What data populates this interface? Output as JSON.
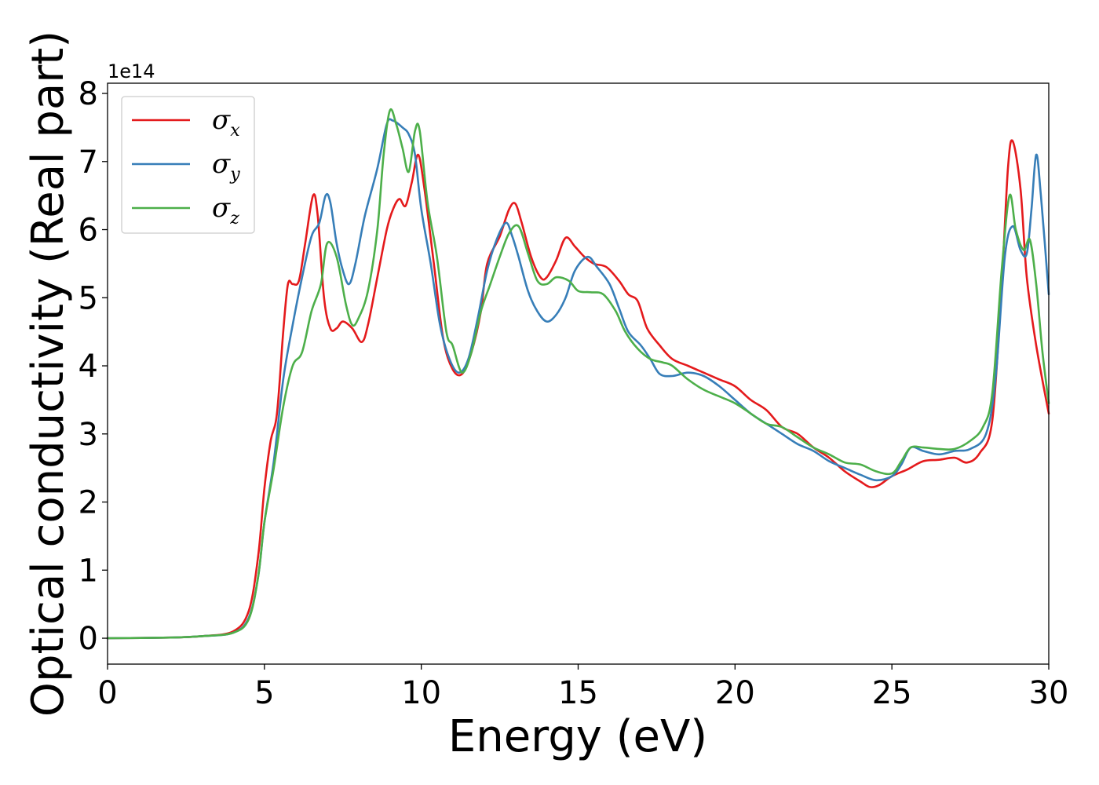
{
  "chart_data": {
    "type": "line",
    "xlabel": "Energy (eV)",
    "ylabel": "Optical conductivity (Real part)",
    "y_offset_label": "1e14",
    "xlim": [
      0,
      30
    ],
    "ylim": [
      -0.38,
      8.15
    ],
    "xticks": [
      0,
      5,
      10,
      15,
      20,
      25,
      30
    ],
    "yticks": [
      0,
      1,
      2,
      3,
      4,
      5,
      6,
      7,
      8
    ],
    "legend_position": "top-left",
    "grid": false,
    "series": [
      {
        "name": "σx",
        "base": "σ",
        "sub": "x",
        "color": "#e41a1c",
        "points": [
          [
            0,
            0
          ],
          [
            2,
            0.01
          ],
          [
            3,
            0.03
          ],
          [
            4,
            0.1
          ],
          [
            4.5,
            0.4
          ],
          [
            4.8,
            1.2
          ],
          [
            5,
            2.2
          ],
          [
            5.2,
            2.9
          ],
          [
            5.4,
            3.3
          ],
          [
            5.6,
            4.5
          ],
          [
            5.75,
            5.2
          ],
          [
            5.9,
            5.2
          ],
          [
            6.1,
            5.25
          ],
          [
            6.3,
            5.8
          ],
          [
            6.55,
            6.5
          ],
          [
            6.7,
            6.2
          ],
          [
            6.9,
            5.0
          ],
          [
            7.1,
            4.55
          ],
          [
            7.3,
            4.55
          ],
          [
            7.5,
            4.65
          ],
          [
            7.8,
            4.55
          ],
          [
            8.1,
            4.35
          ],
          [
            8.3,
            4.6
          ],
          [
            8.6,
            5.3
          ],
          [
            8.9,
            6.0
          ],
          [
            9.1,
            6.3
          ],
          [
            9.3,
            6.45
          ],
          [
            9.5,
            6.35
          ],
          [
            9.7,
            6.7
          ],
          [
            9.9,
            7.1
          ],
          [
            10.1,
            6.6
          ],
          [
            10.4,
            5.5
          ],
          [
            10.7,
            4.4
          ],
          [
            11.0,
            3.95
          ],
          [
            11.3,
            3.88
          ],
          [
            11.6,
            4.2
          ],
          [
            11.9,
            4.8
          ],
          [
            12.1,
            5.5
          ],
          [
            12.5,
            5.9
          ],
          [
            12.8,
            6.3
          ],
          [
            13.0,
            6.38
          ],
          [
            13.2,
            6.1
          ],
          [
            13.5,
            5.6
          ],
          [
            13.8,
            5.3
          ],
          [
            14.0,
            5.3
          ],
          [
            14.3,
            5.55
          ],
          [
            14.6,
            5.88
          ],
          [
            14.9,
            5.75
          ],
          [
            15.2,
            5.6
          ],
          [
            15.5,
            5.5
          ],
          [
            15.9,
            5.45
          ],
          [
            16.3,
            5.25
          ],
          [
            16.6,
            5.05
          ],
          [
            16.9,
            4.95
          ],
          [
            17.2,
            4.55
          ],
          [
            17.6,
            4.3
          ],
          [
            18.0,
            4.1
          ],
          [
            18.5,
            4.0
          ],
          [
            19.0,
            3.9
          ],
          [
            19.5,
            3.8
          ],
          [
            20.0,
            3.7
          ],
          [
            20.5,
            3.5
          ],
          [
            21.0,
            3.35
          ],
          [
            21.5,
            3.1
          ],
          [
            22.0,
            3.0
          ],
          [
            22.5,
            2.8
          ],
          [
            23.0,
            2.65
          ],
          [
            23.5,
            2.45
          ],
          [
            24.0,
            2.3
          ],
          [
            24.3,
            2.22
          ],
          [
            24.6,
            2.25
          ],
          [
            25.0,
            2.38
          ],
          [
            25.5,
            2.48
          ],
          [
            26.0,
            2.6
          ],
          [
            26.5,
            2.62
          ],
          [
            27.0,
            2.65
          ],
          [
            27.4,
            2.58
          ],
          [
            27.8,
            2.72
          ],
          [
            28.2,
            3.2
          ],
          [
            28.5,
            5.2
          ],
          [
            28.7,
            6.9
          ],
          [
            28.85,
            7.3
          ],
          [
            29.1,
            6.6
          ],
          [
            29.3,
            5.3
          ],
          [
            29.6,
            4.3
          ],
          [
            30,
            3.3
          ]
        ]
      },
      {
        "name": "σy",
        "base": "σ",
        "sub": "y",
        "color": "#377eb8",
        "points": [
          [
            0,
            0
          ],
          [
            2,
            0.01
          ],
          [
            3,
            0.03
          ],
          [
            4,
            0.08
          ],
          [
            4.5,
            0.3
          ],
          [
            4.8,
            0.9
          ],
          [
            5,
            1.7
          ],
          [
            5.3,
            2.6
          ],
          [
            5.6,
            3.8
          ],
          [
            5.9,
            4.6
          ],
          [
            6.2,
            5.3
          ],
          [
            6.5,
            5.9
          ],
          [
            6.75,
            6.1
          ],
          [
            6.95,
            6.5
          ],
          [
            7.1,
            6.4
          ],
          [
            7.3,
            5.8
          ],
          [
            7.5,
            5.4
          ],
          [
            7.7,
            5.2
          ],
          [
            7.9,
            5.5
          ],
          [
            8.2,
            6.2
          ],
          [
            8.6,
            6.9
          ],
          [
            8.9,
            7.55
          ],
          [
            9.1,
            7.6
          ],
          [
            9.4,
            7.5
          ],
          [
            9.6,
            7.4
          ],
          [
            9.8,
            7.1
          ],
          [
            10.0,
            6.3
          ],
          [
            10.3,
            5.5
          ],
          [
            10.6,
            4.6
          ],
          [
            10.9,
            4.1
          ],
          [
            11.2,
            3.9
          ],
          [
            11.5,
            4.1
          ],
          [
            11.8,
            4.7
          ],
          [
            12.1,
            5.4
          ],
          [
            12.4,
            5.85
          ],
          [
            12.7,
            6.1
          ],
          [
            12.9,
            5.9
          ],
          [
            13.1,
            5.6
          ],
          [
            13.4,
            5.1
          ],
          [
            13.7,
            4.8
          ],
          [
            14.0,
            4.65
          ],
          [
            14.3,
            4.75
          ],
          [
            14.6,
            5.0
          ],
          [
            14.9,
            5.4
          ],
          [
            15.3,
            5.6
          ],
          [
            15.6,
            5.45
          ],
          [
            16.0,
            5.2
          ],
          [
            16.3,
            4.85
          ],
          [
            16.6,
            4.5
          ],
          [
            17.0,
            4.3
          ],
          [
            17.3,
            4.1
          ],
          [
            17.6,
            3.88
          ],
          [
            18.0,
            3.85
          ],
          [
            18.5,
            3.9
          ],
          [
            19.0,
            3.85
          ],
          [
            19.5,
            3.7
          ],
          [
            20.0,
            3.5
          ],
          [
            20.5,
            3.3
          ],
          [
            21.0,
            3.15
          ],
          [
            21.5,
            3.0
          ],
          [
            22.0,
            2.85
          ],
          [
            22.5,
            2.75
          ],
          [
            23.0,
            2.6
          ],
          [
            23.5,
            2.5
          ],
          [
            24.0,
            2.4
          ],
          [
            24.5,
            2.32
          ],
          [
            25.0,
            2.38
          ],
          [
            25.3,
            2.55
          ],
          [
            25.6,
            2.8
          ],
          [
            26.0,
            2.75
          ],
          [
            26.5,
            2.7
          ],
          [
            27.0,
            2.75
          ],
          [
            27.5,
            2.78
          ],
          [
            28.0,
            3.0
          ],
          [
            28.3,
            3.8
          ],
          [
            28.6,
            5.6
          ],
          [
            28.85,
            6.05
          ],
          [
            29.1,
            5.7
          ],
          [
            29.3,
            5.65
          ],
          [
            29.45,
            6.3
          ],
          [
            29.6,
            7.1
          ],
          [
            29.75,
            6.5
          ],
          [
            30,
            5.05
          ]
        ]
      },
      {
        "name": "σz",
        "base": "σ",
        "sub": "z",
        "color": "#4daf4a",
        "points": [
          [
            0,
            0
          ],
          [
            2,
            0.01
          ],
          [
            3,
            0.03
          ],
          [
            4,
            0.08
          ],
          [
            4.5,
            0.28
          ],
          [
            4.8,
            0.9
          ],
          [
            5,
            1.7
          ],
          [
            5.3,
            2.5
          ],
          [
            5.6,
            3.4
          ],
          [
            5.9,
            4.0
          ],
          [
            6.2,
            4.2
          ],
          [
            6.5,
            4.8
          ],
          [
            6.8,
            5.2
          ],
          [
            7.0,
            5.8
          ],
          [
            7.3,
            5.6
          ],
          [
            7.6,
            4.9
          ],
          [
            7.8,
            4.6
          ],
          [
            8.0,
            4.7
          ],
          [
            8.3,
            5.1
          ],
          [
            8.6,
            6.0
          ],
          [
            8.8,
            7.1
          ],
          [
            9.0,
            7.75
          ],
          [
            9.2,
            7.55
          ],
          [
            9.4,
            7.2
          ],
          [
            9.6,
            6.85
          ],
          [
            9.8,
            7.45
          ],
          [
            9.95,
            7.45
          ],
          [
            10.2,
            6.4
          ],
          [
            10.5,
            5.6
          ],
          [
            10.8,
            4.5
          ],
          [
            11.0,
            4.3
          ],
          [
            11.3,
            3.9
          ],
          [
            11.6,
            4.2
          ],
          [
            11.9,
            4.8
          ],
          [
            12.2,
            5.2
          ],
          [
            12.5,
            5.6
          ],
          [
            12.8,
            5.95
          ],
          [
            13.1,
            6.05
          ],
          [
            13.4,
            5.65
          ],
          [
            13.7,
            5.25
          ],
          [
            14.0,
            5.2
          ],
          [
            14.3,
            5.3
          ],
          [
            14.7,
            5.25
          ],
          [
            15.0,
            5.1
          ],
          [
            15.4,
            5.08
          ],
          [
            15.8,
            5.05
          ],
          [
            16.2,
            4.8
          ],
          [
            16.5,
            4.5
          ],
          [
            16.9,
            4.25
          ],
          [
            17.3,
            4.1
          ],
          [
            17.7,
            4.05
          ],
          [
            18.0,
            4.0
          ],
          [
            18.5,
            3.8
          ],
          [
            19.0,
            3.65
          ],
          [
            19.5,
            3.55
          ],
          [
            20.0,
            3.45
          ],
          [
            20.5,
            3.3
          ],
          [
            21.0,
            3.15
          ],
          [
            21.5,
            3.1
          ],
          [
            22.0,
            2.95
          ],
          [
            22.5,
            2.8
          ],
          [
            23.0,
            2.7
          ],
          [
            23.5,
            2.58
          ],
          [
            24.0,
            2.55
          ],
          [
            24.5,
            2.45
          ],
          [
            25.0,
            2.42
          ],
          [
            25.3,
            2.6
          ],
          [
            25.6,
            2.8
          ],
          [
            26.0,
            2.8
          ],
          [
            26.5,
            2.78
          ],
          [
            27.0,
            2.78
          ],
          [
            27.5,
            2.9
          ],
          [
            27.9,
            3.1
          ],
          [
            28.2,
            3.6
          ],
          [
            28.5,
            5.4
          ],
          [
            28.75,
            6.5
          ],
          [
            28.95,
            6.0
          ],
          [
            29.2,
            5.7
          ],
          [
            29.4,
            5.85
          ],
          [
            29.6,
            5.2
          ],
          [
            29.8,
            4.2
          ],
          [
            30,
            3.45
          ]
        ]
      }
    ]
  }
}
